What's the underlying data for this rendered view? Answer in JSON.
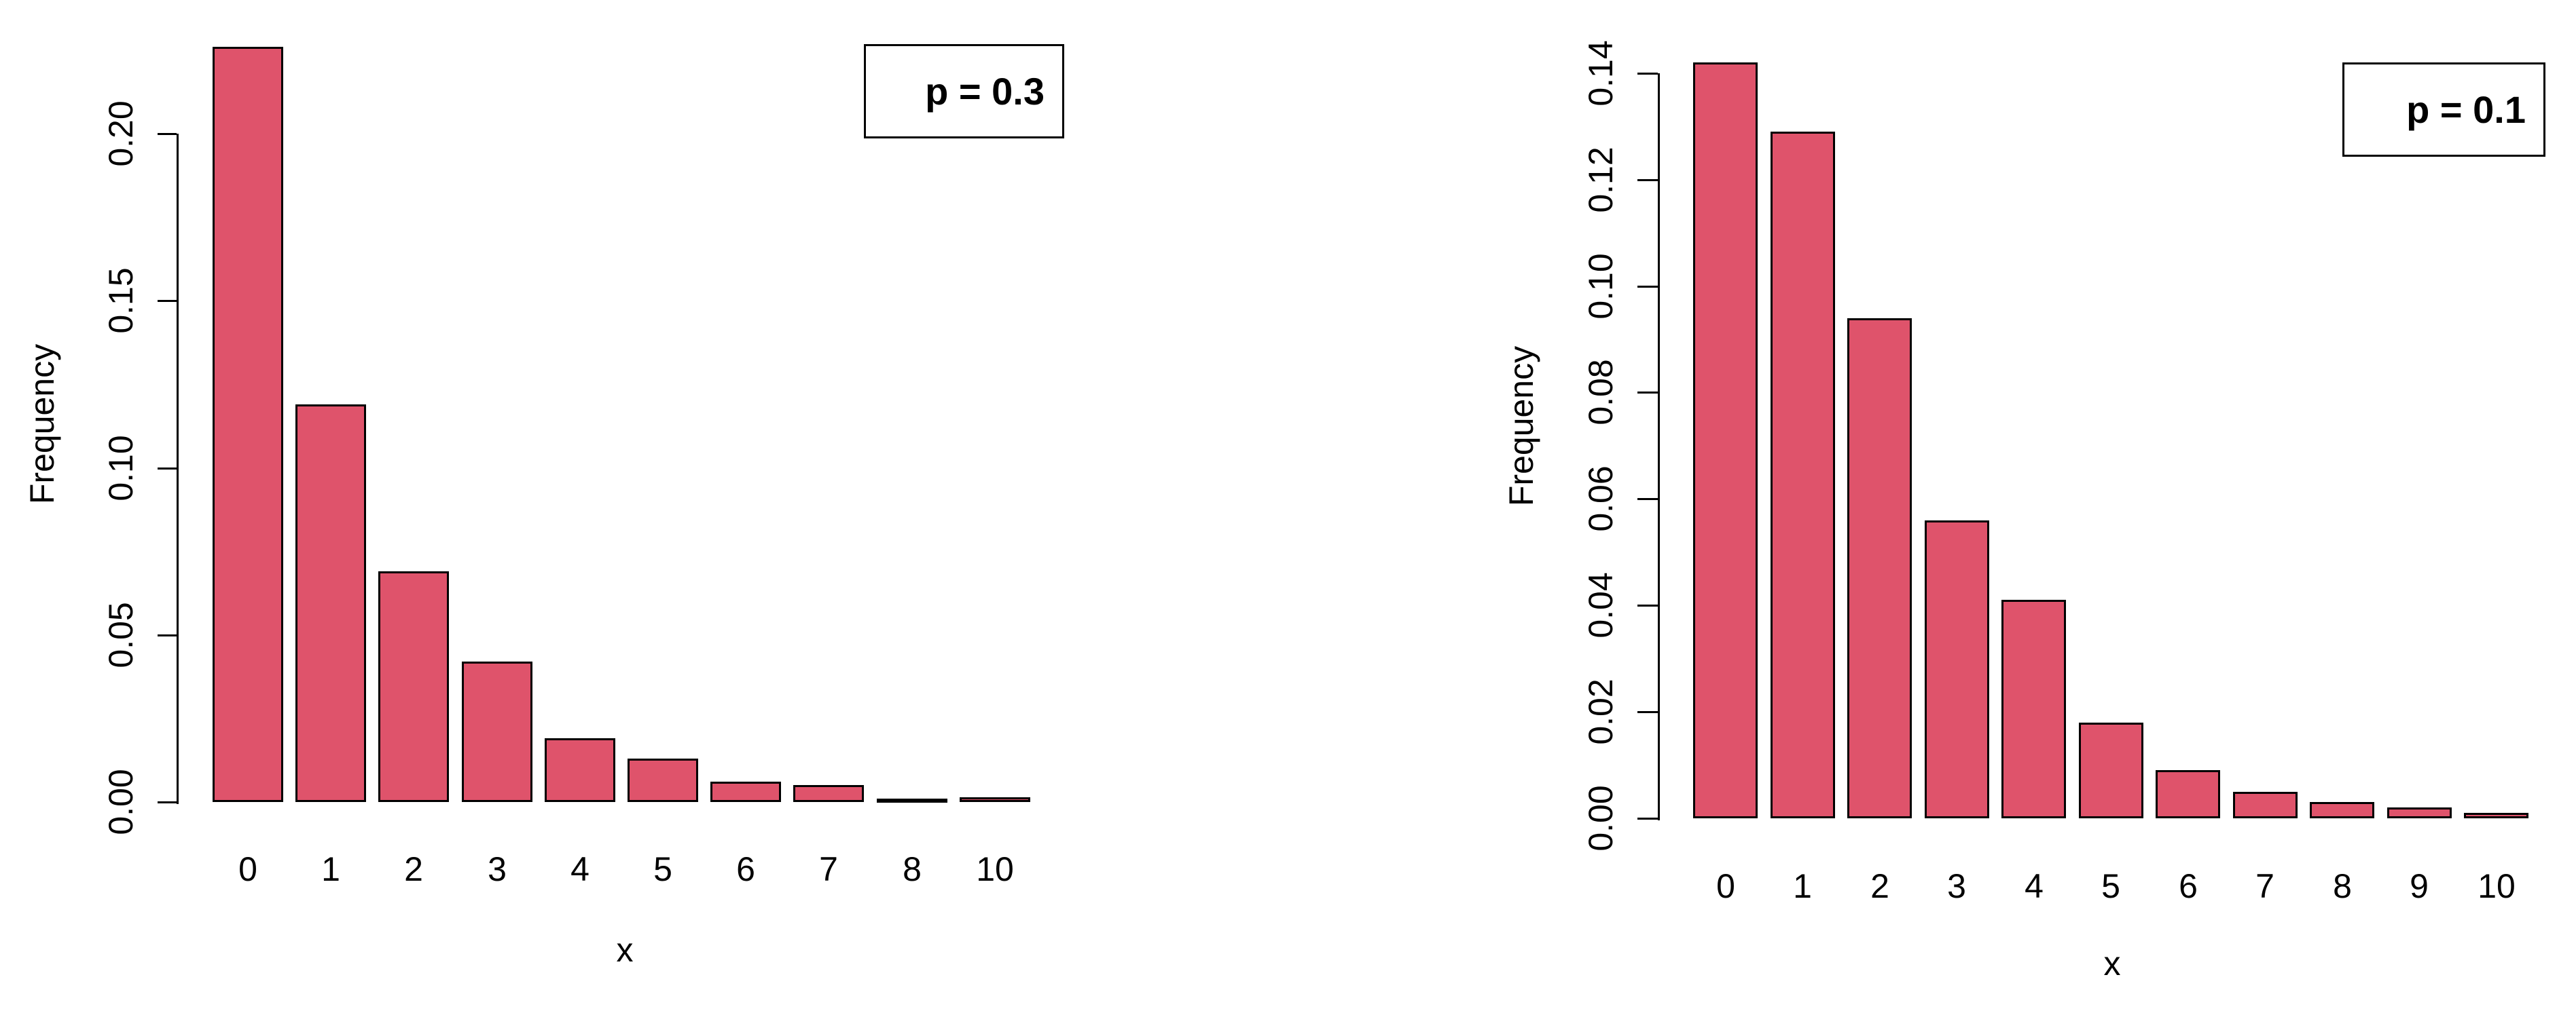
{
  "page": {
    "background_color": "#ffffff",
    "text_color": "#000000"
  },
  "chart_data": [
    {
      "type": "bar",
      "panel": "left",
      "title": "",
      "legend_label": "p = 0.3",
      "legend_position": "topright",
      "xlabel": "x",
      "ylabel": "Frequency",
      "categories": [
        "0",
        "1",
        "2",
        "3",
        "4",
        "5",
        "6",
        "7",
        "8",
        "10"
      ],
      "values": [
        0.226,
        0.119,
        0.069,
        0.042,
        0.019,
        0.013,
        0.006,
        0.005,
        0.001,
        0.0015
      ],
      "ytick_labels": [
        "0.00",
        "0.05",
        "0.10",
        "0.15",
        "0.20"
      ],
      "ytick_values": [
        0,
        0.05,
        0.1,
        0.15,
        0.2
      ],
      "ylim": [
        0,
        0.24
      ],
      "grid": false,
      "bar_color": "#DF536B",
      "bar_border_color": "#000000"
    },
    {
      "type": "bar",
      "panel": "right",
      "title": "",
      "legend_label": "p = 0.1",
      "legend_position": "topright",
      "xlabel": "x",
      "ylabel": "Frequency",
      "categories": [
        "0",
        "1",
        "2",
        "3",
        "4",
        "5",
        "6",
        "7",
        "8",
        "9",
        "10"
      ],
      "values": [
        0.142,
        0.129,
        0.094,
        0.056,
        0.041,
        0.018,
        0.009,
        0.005,
        0.003,
        0.002,
        0.001
      ],
      "ytick_labels": [
        "0.00",
        "0.02",
        "0.04",
        "0.06",
        "0.08",
        "0.10",
        "0.12",
        "0.14"
      ],
      "ytick_values": [
        0,
        0.02,
        0.04,
        0.06,
        0.08,
        0.1,
        0.12,
        0.14
      ],
      "ylim": [
        0,
        0.155
      ],
      "grid": false,
      "bar_color": "#DF536B",
      "bar_border_color": "#000000"
    }
  ]
}
